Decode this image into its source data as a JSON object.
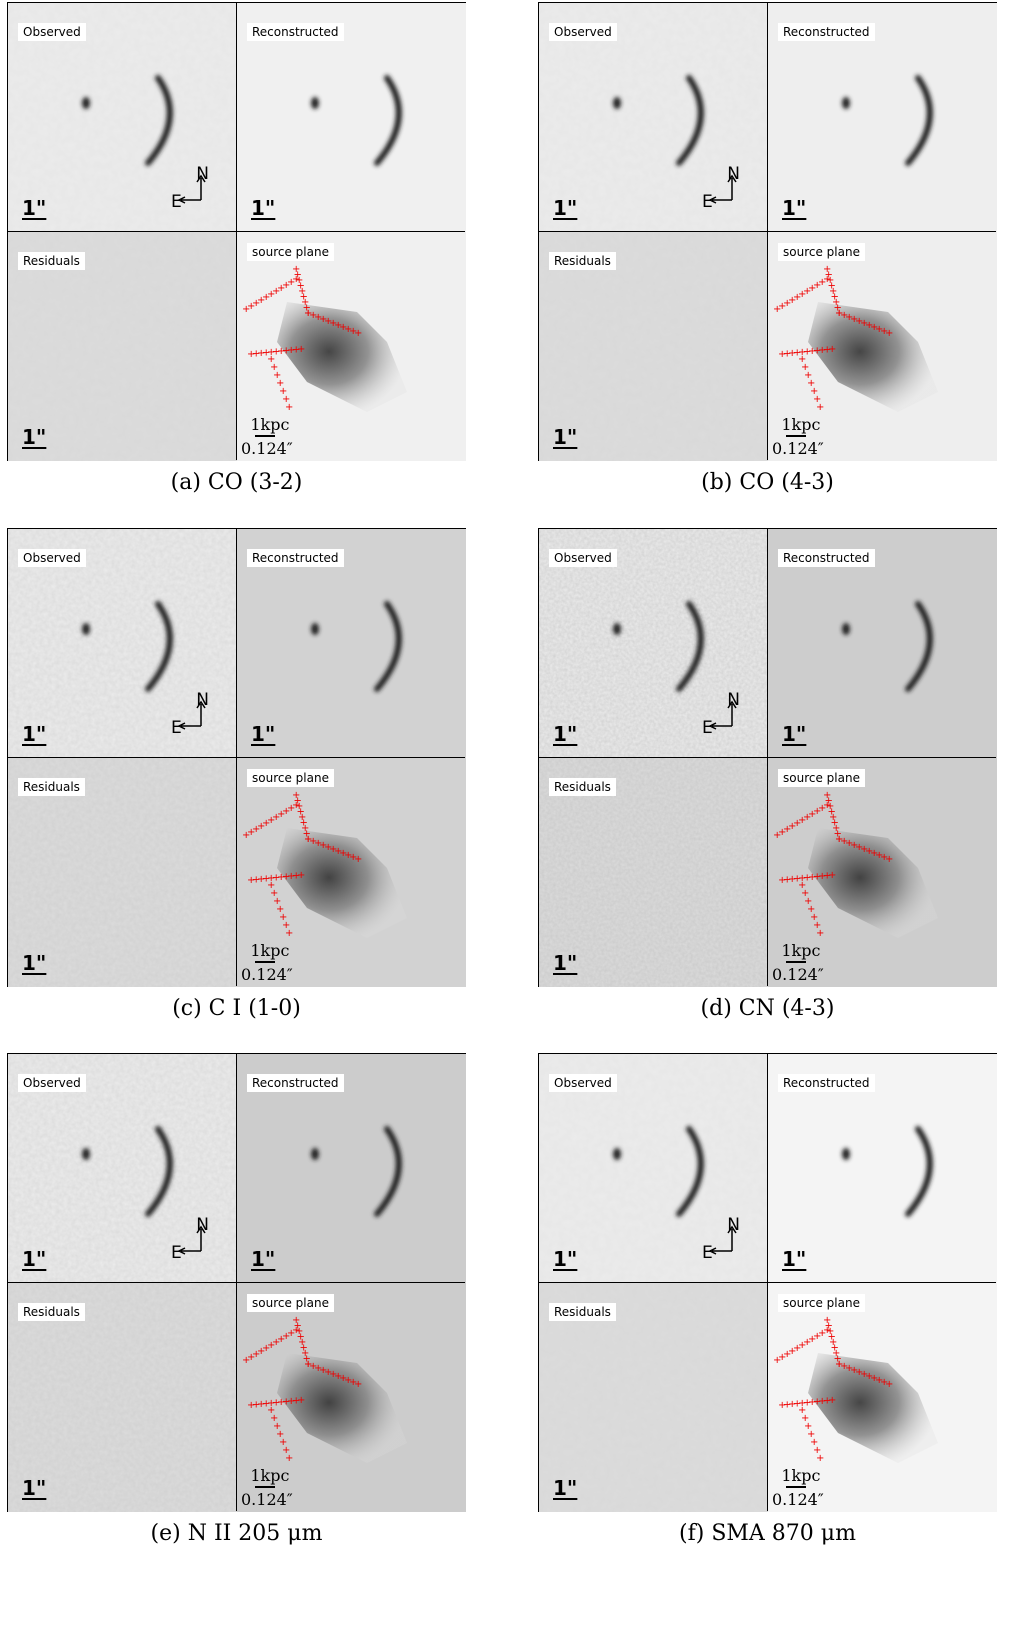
{
  "labels": {
    "observed": "Observed",
    "reconstructed": "Reconstructed",
    "residuals": "Residuals",
    "source_plane": "source plane",
    "arcsec_scale": "1\"",
    "north": "N",
    "east": "E",
    "kpc_scale": "1kpc",
    "arcsec_kpc": "0.124″"
  },
  "panels": [
    {
      "caption": "(a) CO (3-2)",
      "background": "#f0f0f0",
      "noise": "low"
    },
    {
      "caption": "(b) CO (4-3)",
      "background": "#eeeeee",
      "noise": "low"
    },
    {
      "caption": "(c) C I (1-0)",
      "background": "#d2d2d2",
      "noise": "medium"
    },
    {
      "caption": "(d) CN (4-3)",
      "background": "#cdcdcd",
      "noise": "high"
    },
    {
      "caption": "(e) N II 205 μm",
      "background": "#cccccc",
      "noise": "medium"
    },
    {
      "caption": "(f) SMA 870 μm",
      "background": "#f4f4f4",
      "noise": "low"
    }
  ]
}
